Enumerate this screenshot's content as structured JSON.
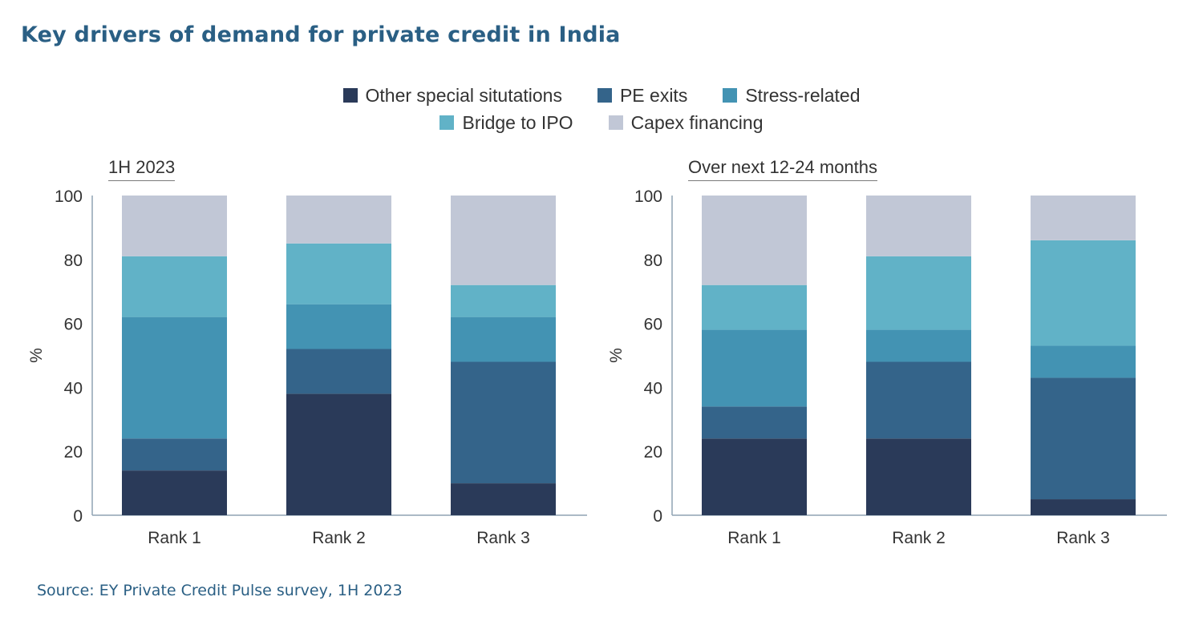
{
  "title": "Key drivers of demand for private credit in India",
  "source": "Source: EY Private Credit Pulse survey, 1H 2023",
  "legend": [
    {
      "name": "Other special situtations",
      "color": "#2a3a59"
    },
    {
      "name": "PE exits",
      "color": "#34648a"
    },
    {
      "name": "Stress-related",
      "color": "#4393b3"
    },
    {
      "name": "Bridge to IPO",
      "color": "#61b2c7"
    },
    {
      "name": "Capex financing",
      "color": "#c1c7d6"
    }
  ],
  "chart_data": [
    {
      "type": "bar",
      "stacked": true,
      "title": "1H 2023",
      "categories": [
        "Rank 1",
        "Rank 2",
        "Rank 3"
      ],
      "ylabel": "%",
      "ylim": [
        0,
        100
      ],
      "yticks": [
        0,
        20,
        40,
        60,
        80,
        100
      ],
      "series": [
        {
          "name": "Other special situtations",
          "values": [
            14,
            38,
            10
          ]
        },
        {
          "name": "PE exits",
          "values": [
            10,
            14,
            38
          ]
        },
        {
          "name": "Stress-related",
          "values": [
            38,
            14,
            14
          ]
        },
        {
          "name": "Bridge to IPO",
          "values": [
            19,
            19,
            10
          ]
        },
        {
          "name": "Capex financing",
          "values": [
            19,
            15,
            28
          ]
        }
      ]
    },
    {
      "type": "bar",
      "stacked": true,
      "title": "Over next 12-24 months",
      "categories": [
        "Rank 1",
        "Rank 2",
        "Rank 3"
      ],
      "ylabel": "%",
      "ylim": [
        0,
        100
      ],
      "yticks": [
        0,
        20,
        40,
        60,
        80,
        100
      ],
      "series": [
        {
          "name": "Other special situtations",
          "values": [
            24,
            24,
            5
          ]
        },
        {
          "name": "PE exits",
          "values": [
            10,
            24,
            38
          ]
        },
        {
          "name": "Stress-related",
          "values": [
            24,
            10,
            10
          ]
        },
        {
          "name": "Bridge to IPO",
          "values": [
            14,
            23,
            33
          ]
        },
        {
          "name": "Capex financing",
          "values": [
            28,
            19,
            14
          ]
        }
      ]
    }
  ]
}
